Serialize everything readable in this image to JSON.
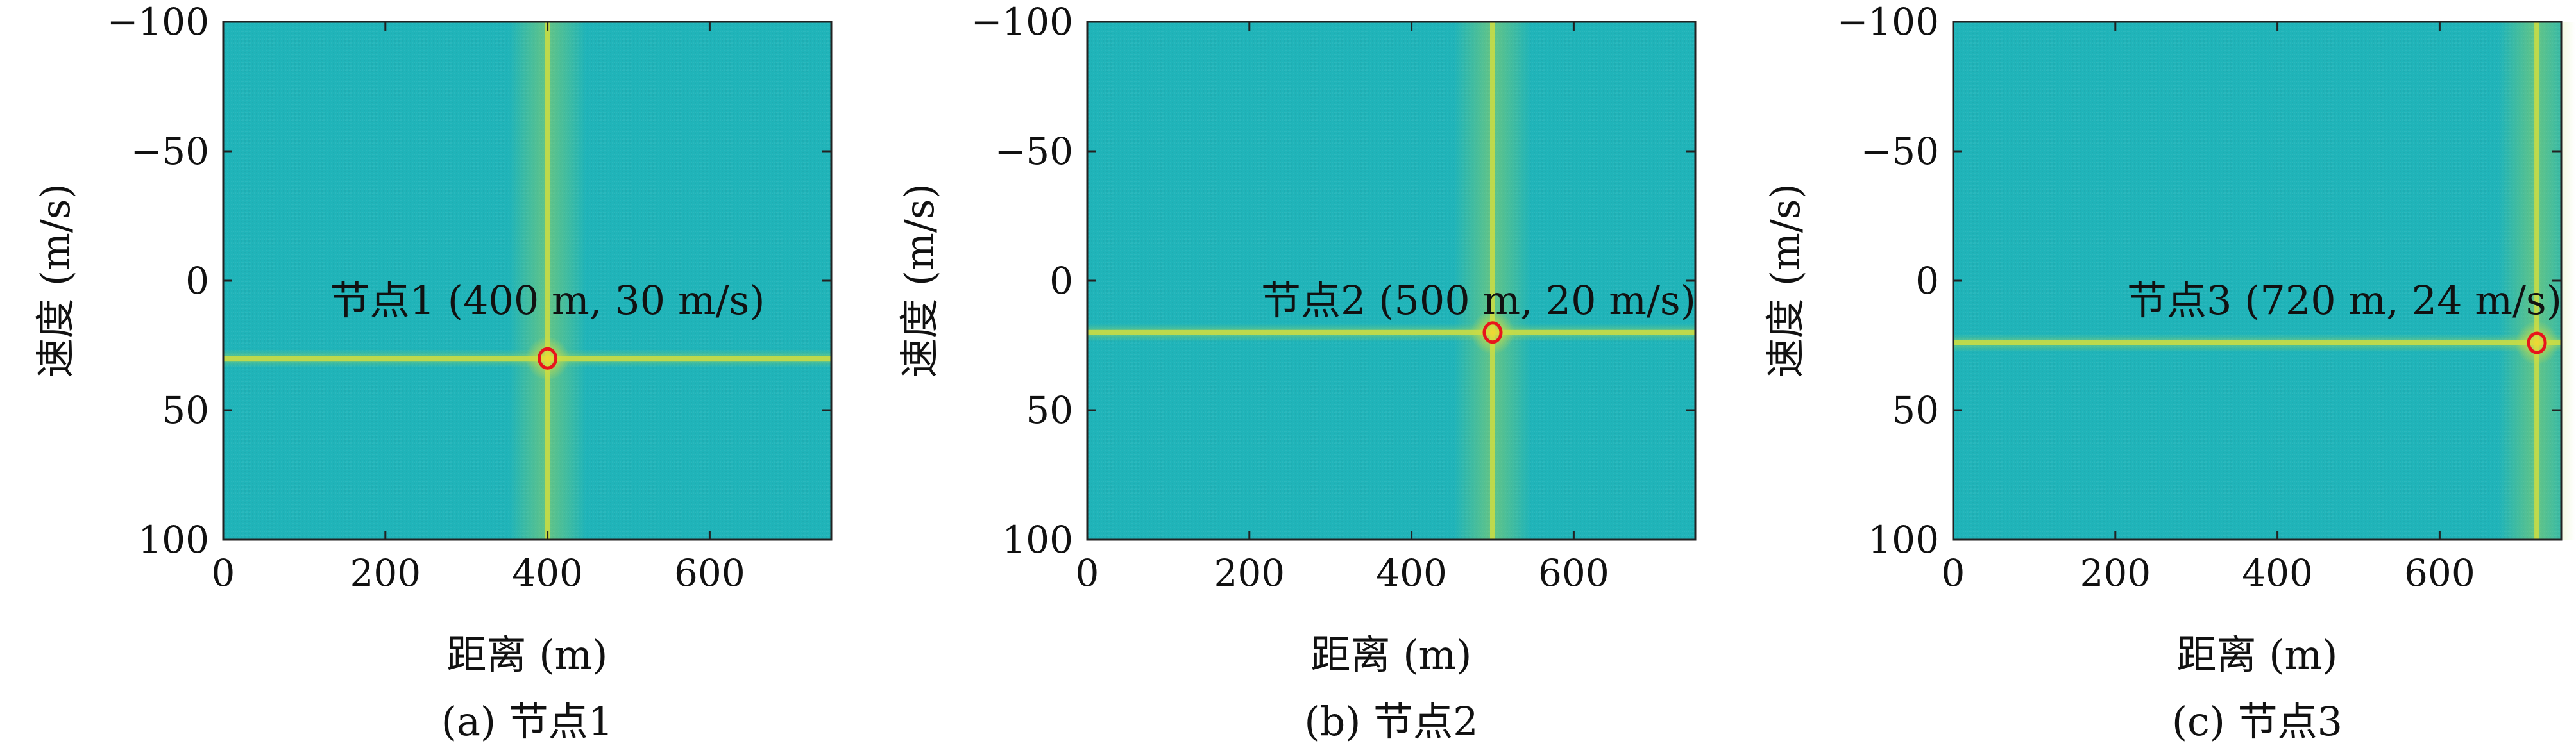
{
  "chart_data": [
    {
      "type": "heatmap",
      "caption": "(a) 节点1",
      "xlabel": "距离 (m)",
      "ylabel": "速度 (m/s)",
      "xlim": [
        0,
        750
      ],
      "ylim": [
        -100,
        100
      ],
      "y_axis_reversed": true,
      "xticks": [
        0,
        200,
        400,
        600
      ],
      "yticks": [
        -100,
        -50,
        0,
        50,
        100
      ],
      "xtick_labels": [
        "0",
        "200",
        "400",
        "600"
      ],
      "ytick_labels": [
        "−100",
        "−50",
        "0",
        "50",
        "100"
      ],
      "peak": {
        "x": 400,
        "y": 30
      },
      "annotation": "节点1 (400 m, 30 m/s)",
      "grid": false
    },
    {
      "type": "heatmap",
      "caption": "(b) 节点2",
      "xlabel": "距离 (m)",
      "ylabel": "速度 (m/s)",
      "xlim": [
        0,
        750
      ],
      "ylim": [
        -100,
        100
      ],
      "y_axis_reversed": true,
      "xticks": [
        0,
        200,
        400,
        600
      ],
      "yticks": [
        -100,
        -50,
        0,
        50,
        100
      ],
      "xtick_labels": [
        "0",
        "200",
        "400",
        "600"
      ],
      "ytick_labels": [
        "−100",
        "−50",
        "0",
        "50",
        "100"
      ],
      "peak": {
        "x": 500,
        "y": 20
      },
      "annotation": "节点2 (500 m, 20 m/s)",
      "grid": false
    },
    {
      "type": "heatmap",
      "caption": "(c) 节点3",
      "xlabel": "距离 (m)",
      "ylabel": "速度 (m/s)",
      "xlim": [
        0,
        750
      ],
      "ylim": [
        -100,
        100
      ],
      "y_axis_reversed": true,
      "xticks": [
        0,
        200,
        400,
        600
      ],
      "yticks": [
        -100,
        -50,
        0,
        50,
        100
      ],
      "xtick_labels": [
        "0",
        "200",
        "400",
        "600"
      ],
      "ytick_labels": [
        "−100",
        "−50",
        "0",
        "50",
        "100"
      ],
      "peak": {
        "x": 720,
        "y": 24
      },
      "annotation": "节点3 (720 m, 24 m/s)",
      "grid": false
    }
  ],
  "colors": {
    "background_field": "#20b4b9",
    "ridge": "#c8dc46",
    "peak_glow": "#f2d532",
    "marker": "#e8141c",
    "frame": "#222222"
  }
}
